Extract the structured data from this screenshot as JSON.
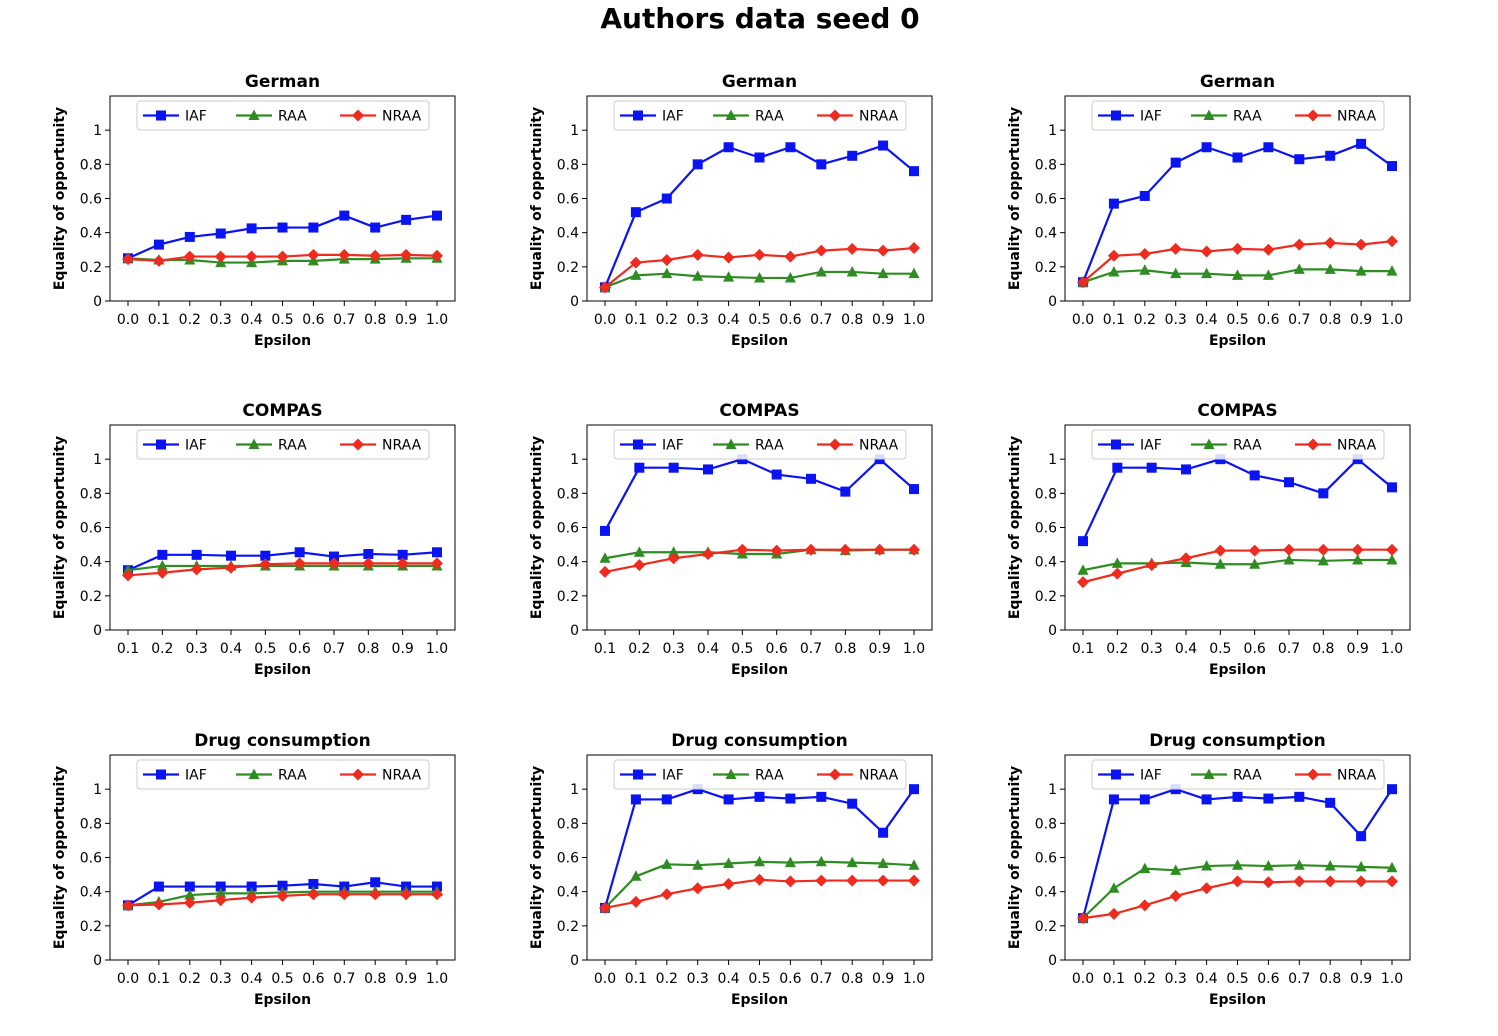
{
  "page_title": "Authors data seed 0",
  "colors": {
    "IAF": "#0a14f2",
    "RAA": "#2e8c22",
    "NRAA": "#ee2b1f"
  },
  "chart_data": [
    {
      "type": "line",
      "title": "German",
      "xlabel": "Epsilon",
      "ylabel": "Equality of opportunity",
      "x": [
        "0.0",
        "0.1",
        "0.2",
        "0.3",
        "0.4",
        "0.5",
        "0.6",
        "0.7",
        "0.8",
        "0.9",
        "1.0"
      ],
      "ylim": [
        0,
        1.2
      ],
      "yticks": [
        "0",
        "0.2",
        "0.4",
        "0.6",
        "0.8",
        "1"
      ],
      "legend": "top",
      "series": [
        {
          "name": "IAF",
          "marker": "square",
          "values": [
            0.25,
            0.33,
            0.375,
            0.395,
            0.425,
            0.43,
            0.43,
            0.5,
            0.43,
            0.475,
            0.5
          ]
        },
        {
          "name": "RAA",
          "marker": "triangle",
          "values": [
            0.25,
            0.24,
            0.24,
            0.225,
            0.225,
            0.235,
            0.235,
            0.245,
            0.245,
            0.25,
            0.25
          ]
        },
        {
          "name": "NRAA",
          "marker": "diamond",
          "values": [
            0.245,
            0.235,
            0.26,
            0.26,
            0.26,
            0.26,
            0.27,
            0.27,
            0.265,
            0.27,
            0.265
          ]
        }
      ]
    },
    {
      "type": "line",
      "title": "German",
      "xlabel": "Epsilon",
      "ylabel": "Equality of opportunity",
      "x": [
        "0.0",
        "0.1",
        "0.2",
        "0.3",
        "0.4",
        "0.5",
        "0.6",
        "0.7",
        "0.8",
        "0.9",
        "1.0"
      ],
      "ylim": [
        0,
        1.2
      ],
      "yticks": [
        "0",
        "0.2",
        "0.4",
        "0.6",
        "0.8",
        "1"
      ],
      "legend": "top",
      "series": [
        {
          "name": "IAF",
          "marker": "square",
          "values": [
            0.08,
            0.52,
            0.6,
            0.8,
            0.9,
            0.84,
            0.9,
            0.8,
            0.85,
            0.91,
            0.76
          ]
        },
        {
          "name": "RAA",
          "marker": "triangle",
          "values": [
            0.08,
            0.15,
            0.16,
            0.145,
            0.14,
            0.135,
            0.135,
            0.17,
            0.17,
            0.16,
            0.16
          ]
        },
        {
          "name": "NRAA",
          "marker": "diamond",
          "values": [
            0.08,
            0.225,
            0.24,
            0.27,
            0.255,
            0.27,
            0.26,
            0.295,
            0.305,
            0.295,
            0.31
          ]
        }
      ]
    },
    {
      "type": "line",
      "title": "German",
      "xlabel": "Epsilon",
      "ylabel": "Equality of opportunity",
      "x": [
        "0.0",
        "0.1",
        "0.2",
        "0.3",
        "0.4",
        "0.5",
        "0.6",
        "0.7",
        "0.8",
        "0.9",
        "1.0"
      ],
      "ylim": [
        0,
        1.2
      ],
      "yticks": [
        "0",
        "0.2",
        "0.4",
        "0.6",
        "0.8",
        "1"
      ],
      "legend": "top",
      "series": [
        {
          "name": "IAF",
          "marker": "square",
          "values": [
            0.11,
            0.57,
            0.615,
            0.81,
            0.9,
            0.84,
            0.9,
            0.83,
            0.85,
            0.92,
            0.79
          ]
        },
        {
          "name": "RAA",
          "marker": "triangle",
          "values": [
            0.11,
            0.17,
            0.18,
            0.16,
            0.16,
            0.15,
            0.15,
            0.185,
            0.185,
            0.175,
            0.175
          ]
        },
        {
          "name": "NRAA",
          "marker": "diamond",
          "values": [
            0.11,
            0.265,
            0.275,
            0.305,
            0.29,
            0.305,
            0.3,
            0.33,
            0.34,
            0.33,
            0.35
          ]
        }
      ]
    },
    {
      "type": "line",
      "title": "COMPAS",
      "xlabel": "Epsilon",
      "ylabel": "Equality of opportunity",
      "x": [
        "0.1",
        "0.2",
        "0.3",
        "0.4",
        "0.5",
        "0.6",
        "0.7",
        "0.8",
        "0.9",
        "1.0"
      ],
      "ylim": [
        0,
        1.2
      ],
      "yticks": [
        "0",
        "0.2",
        "0.4",
        "0.6",
        "0.8",
        "1"
      ],
      "legend": "top",
      "series": [
        {
          "name": "IAF",
          "marker": "square",
          "values": [
            0.35,
            0.44,
            0.44,
            0.435,
            0.435,
            0.455,
            0.43,
            0.445,
            0.44,
            0.455
          ]
        },
        {
          "name": "RAA",
          "marker": "triangle",
          "values": [
            0.35,
            0.375,
            0.375,
            0.375,
            0.375,
            0.375,
            0.375,
            0.375,
            0.375,
            0.375
          ]
        },
        {
          "name": "NRAA",
          "marker": "diamond",
          "values": [
            0.32,
            0.335,
            0.355,
            0.365,
            0.385,
            0.39,
            0.39,
            0.39,
            0.39,
            0.39
          ]
        }
      ]
    },
    {
      "type": "line",
      "title": "COMPAS",
      "xlabel": "Epsilon",
      "ylabel": "Equality of opportunity",
      "x": [
        "0.1",
        "0.2",
        "0.3",
        "0.4",
        "0.5",
        "0.6",
        "0.7",
        "0.8",
        "0.9",
        "1.0"
      ],
      "ylim": [
        0,
        1.2
      ],
      "yticks": [
        "0",
        "0.2",
        "0.4",
        "0.6",
        "0.8",
        "1"
      ],
      "legend": "top",
      "series": [
        {
          "name": "IAF",
          "marker": "square",
          "values": [
            0.58,
            0.95,
            0.95,
            0.94,
            1.0,
            0.91,
            0.885,
            0.81,
            1.0,
            0.825
          ]
        },
        {
          "name": "RAA",
          "marker": "triangle",
          "values": [
            0.42,
            0.455,
            0.455,
            0.455,
            0.445,
            0.445,
            0.47,
            0.465,
            0.47,
            0.47
          ]
        },
        {
          "name": "NRAA",
          "marker": "diamond",
          "values": [
            0.34,
            0.38,
            0.42,
            0.445,
            0.47,
            0.465,
            0.47,
            0.47,
            0.47,
            0.47
          ]
        }
      ]
    },
    {
      "type": "line",
      "title": "COMPAS",
      "xlabel": "Epsilon",
      "ylabel": "Equality of opportunity",
      "x": [
        "0.1",
        "0.2",
        "0.3",
        "0.4",
        "0.5",
        "0.6",
        "0.7",
        "0.8",
        "0.9",
        "1.0"
      ],
      "ylim": [
        0,
        1.2
      ],
      "yticks": [
        "0",
        "0.2",
        "0.4",
        "0.6",
        "0.8",
        "1"
      ],
      "legend": "top",
      "series": [
        {
          "name": "IAF",
          "marker": "square",
          "values": [
            0.52,
            0.95,
            0.95,
            0.94,
            1.0,
            0.905,
            0.865,
            0.8,
            1.0,
            0.835
          ]
        },
        {
          "name": "RAA",
          "marker": "triangle",
          "values": [
            0.35,
            0.39,
            0.39,
            0.395,
            0.385,
            0.385,
            0.41,
            0.405,
            0.41,
            0.41
          ]
        },
        {
          "name": "NRAA",
          "marker": "diamond",
          "values": [
            0.28,
            0.33,
            0.38,
            0.42,
            0.465,
            0.465,
            0.47,
            0.47,
            0.47,
            0.47
          ]
        }
      ]
    },
    {
      "type": "line",
      "title": "Drug consumption",
      "xlabel": "Epsilon",
      "ylabel": "Equality of opportunity",
      "x": [
        "0.0",
        "0.1",
        "0.2",
        "0.3",
        "0.4",
        "0.5",
        "0.6",
        "0.7",
        "0.8",
        "0.9",
        "1.0"
      ],
      "ylim": [
        0,
        1.2
      ],
      "yticks": [
        "0",
        "0.2",
        "0.4",
        "0.6",
        "0.8",
        "1"
      ],
      "legend": "top",
      "series": [
        {
          "name": "IAF",
          "marker": "square",
          "values": [
            0.32,
            0.43,
            0.43,
            0.43,
            0.43,
            0.435,
            0.445,
            0.43,
            0.455,
            0.43,
            0.43
          ]
        },
        {
          "name": "RAA",
          "marker": "triangle",
          "values": [
            0.32,
            0.34,
            0.38,
            0.39,
            0.39,
            0.395,
            0.4,
            0.4,
            0.4,
            0.4,
            0.4
          ]
        },
        {
          "name": "NRAA",
          "marker": "diamond",
          "values": [
            0.32,
            0.325,
            0.335,
            0.35,
            0.365,
            0.375,
            0.385,
            0.385,
            0.385,
            0.385,
            0.385
          ]
        }
      ]
    },
    {
      "type": "line",
      "title": "Drug consumption",
      "xlabel": "Epsilon",
      "ylabel": "Equality of opportunity",
      "x": [
        "0.0",
        "0.1",
        "0.2",
        "0.3",
        "0.4",
        "0.5",
        "0.6",
        "0.7",
        "0.8",
        "0.9",
        "1.0"
      ],
      "ylim": [
        0,
        1.2
      ],
      "yticks": [
        "0",
        "0.2",
        "0.4",
        "0.6",
        "0.8",
        "1"
      ],
      "legend": "top",
      "series": [
        {
          "name": "IAF",
          "marker": "square",
          "values": [
            0.305,
            0.94,
            0.94,
            1.0,
            0.94,
            0.955,
            0.945,
            0.955,
            0.915,
            0.745,
            1.0
          ]
        },
        {
          "name": "RAA",
          "marker": "triangle",
          "values": [
            0.305,
            0.49,
            0.56,
            0.555,
            0.565,
            0.575,
            0.57,
            0.575,
            0.57,
            0.565,
            0.555
          ]
        },
        {
          "name": "NRAA",
          "marker": "diamond",
          "values": [
            0.305,
            0.34,
            0.385,
            0.42,
            0.445,
            0.47,
            0.46,
            0.465,
            0.465,
            0.465,
            0.465
          ]
        }
      ]
    },
    {
      "type": "line",
      "title": "Drug consumption",
      "xlabel": "Epsilon",
      "ylabel": "Equality of opportunity",
      "x": [
        "0.0",
        "0.1",
        "0.2",
        "0.3",
        "0.4",
        "0.5",
        "0.6",
        "0.7",
        "0.8",
        "0.9",
        "1.0"
      ],
      "ylim": [
        0,
        1.2
      ],
      "yticks": [
        "0",
        "0.2",
        "0.4",
        "0.6",
        "0.8",
        "1"
      ],
      "legend": "top",
      "series": [
        {
          "name": "IAF",
          "marker": "square",
          "values": [
            0.245,
            0.94,
            0.94,
            1.0,
            0.94,
            0.955,
            0.945,
            0.955,
            0.92,
            0.725,
            1.0
          ]
        },
        {
          "name": "RAA",
          "marker": "triangle",
          "values": [
            0.245,
            0.42,
            0.535,
            0.525,
            0.55,
            0.555,
            0.55,
            0.555,
            0.55,
            0.545,
            0.54
          ]
        },
        {
          "name": "NRAA",
          "marker": "diamond",
          "values": [
            0.245,
            0.27,
            0.32,
            0.375,
            0.42,
            0.46,
            0.455,
            0.46,
            0.46,
            0.46,
            0.46
          ]
        }
      ]
    }
  ]
}
